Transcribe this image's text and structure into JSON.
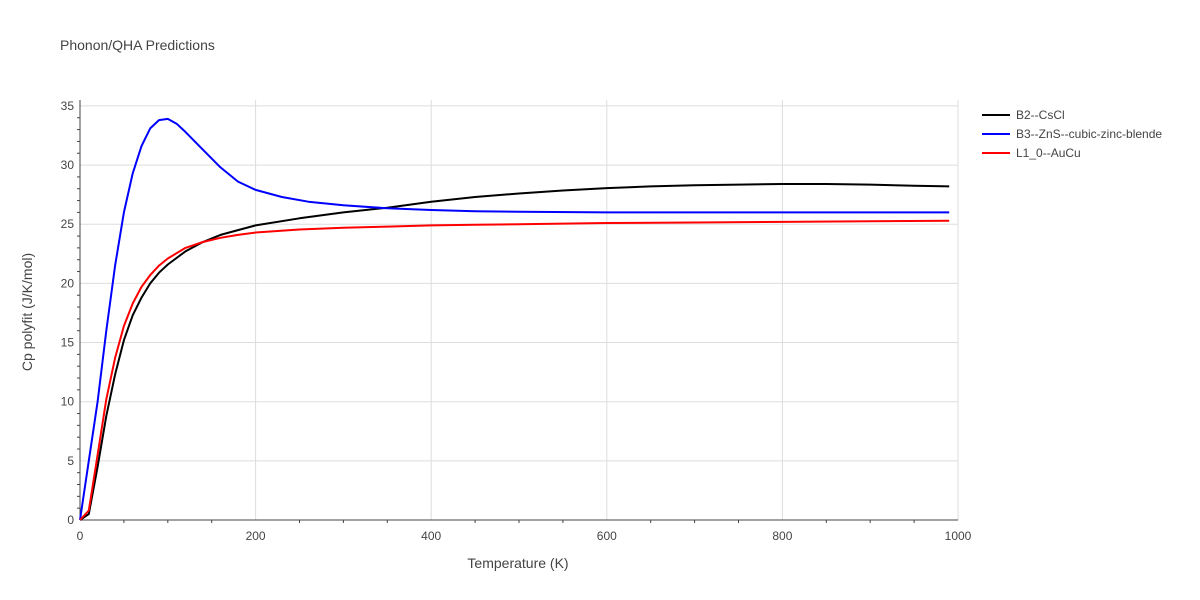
{
  "chart_data": {
    "type": "line",
    "title": "Phonon/QHA Predictions",
    "xlabel": "Temperature (K)",
    "ylabel": "Cp polyfit (J/K/mol)",
    "xlim": [
      0,
      1000
    ],
    "ylim": [
      0,
      35.5
    ],
    "xticks": [
      0,
      200,
      400,
      600,
      800,
      1000
    ],
    "yticks": [
      0,
      5,
      10,
      15,
      20,
      25,
      30,
      35
    ],
    "grid": true,
    "legend_position": "top-right",
    "series": [
      {
        "name": "B2--CsCl",
        "color": "#000000",
        "x": [
          0,
          10,
          20,
          30,
          40,
          50,
          60,
          70,
          80,
          90,
          100,
          120,
          140,
          160,
          180,
          200,
          250,
          300,
          350,
          400,
          450,
          500,
          550,
          600,
          650,
          700,
          750,
          800,
          850,
          900,
          950,
          990
        ],
        "y": [
          0,
          0.5,
          4.5,
          8.8,
          12.3,
          15.2,
          17.3,
          18.8,
          20.0,
          20.9,
          21.6,
          22.7,
          23.5,
          24.1,
          24.5,
          24.9,
          25.5,
          26.0,
          26.4,
          26.9,
          27.3,
          27.6,
          27.85,
          28.05,
          28.2,
          28.3,
          28.35,
          28.4,
          28.4,
          28.35,
          28.25,
          28.2
        ]
      },
      {
        "name": "B3--ZnS--cubic-zinc-blende",
        "color": "#0000ff",
        "x": [
          0,
          10,
          20,
          30,
          40,
          50,
          60,
          70,
          80,
          90,
          100,
          110,
          120,
          140,
          160,
          180,
          200,
          230,
          260,
          300,
          350,
          400,
          450,
          500,
          600,
          700,
          800,
          900,
          990
        ],
        "y": [
          0,
          5,
          10,
          16,
          21.5,
          26,
          29.3,
          31.6,
          33.1,
          33.8,
          33.9,
          33.5,
          32.8,
          31.3,
          29.8,
          28.6,
          27.9,
          27.3,
          26.9,
          26.6,
          26.35,
          26.2,
          26.1,
          26.05,
          26.0,
          26.0,
          26.0,
          26.0,
          26.0
        ]
      },
      {
        "name": "L1_0--AuCu",
        "color": "#ff0000",
        "x": [
          0,
          10,
          20,
          30,
          40,
          50,
          60,
          70,
          80,
          90,
          100,
          120,
          140,
          160,
          180,
          200,
          250,
          300,
          350,
          400,
          450,
          500,
          600,
          700,
          800,
          900,
          990
        ],
        "y": [
          0,
          0.8,
          5.5,
          10.2,
          13.7,
          16.4,
          18.3,
          19.7,
          20.7,
          21.5,
          22.1,
          23.0,
          23.5,
          23.85,
          24.1,
          24.3,
          24.55,
          24.7,
          24.8,
          24.9,
          24.95,
          25.0,
          25.1,
          25.15,
          25.2,
          25.25,
          25.3
        ]
      }
    ]
  }
}
